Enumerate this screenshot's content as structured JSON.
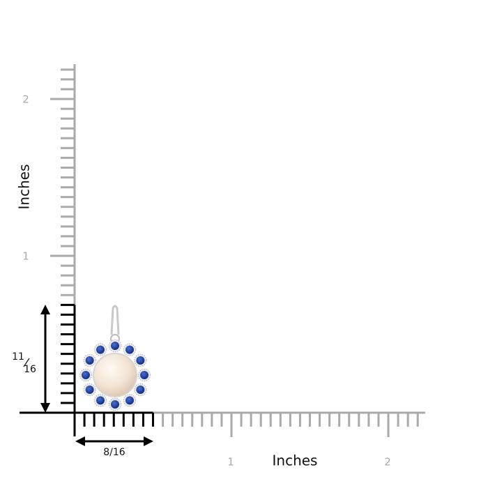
{
  "y_axis": {
    "label": "Inches",
    "ticks": [
      "1",
      "2"
    ]
  },
  "x_axis": {
    "label": "Inches",
    "ticks": [
      "1",
      "2"
    ]
  },
  "height": {
    "numerator": "11",
    "denominator": "16"
  },
  "width": "8/16"
}
